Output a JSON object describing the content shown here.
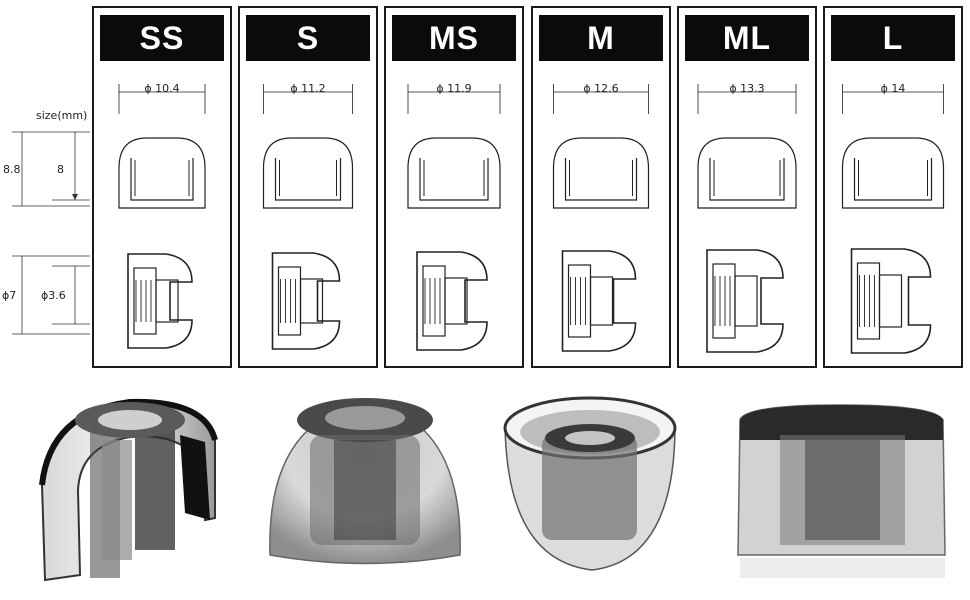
{
  "legend": {
    "unit_label": "size(mm)",
    "outer_height": "8.8",
    "inner_height": "8",
    "outer_diameter": "ϕ7",
    "bore_diameter": "ϕ3.6"
  },
  "sizes": [
    {
      "name": "SS",
      "diameter": "ϕ 10.4"
    },
    {
      "name": "S",
      "diameter": "ϕ 11.2"
    },
    {
      "name": "MS",
      "diameter": "ϕ 11.9"
    },
    {
      "name": "M",
      "diameter": "ϕ 12.6"
    },
    {
      "name": "ML",
      "diameter": "ϕ 13.3"
    },
    {
      "name": "L",
      "diameter": "ϕ 14"
    }
  ],
  "colors": {
    "border": "#1a1a1a",
    "header_bg": "#0b0b0b",
    "header_text": "#ffffff"
  },
  "photos": [
    {
      "name": "eartip-photo-cutaway"
    },
    {
      "name": "eartip-photo-dome"
    },
    {
      "name": "eartip-photo-wide-bowl"
    },
    {
      "name": "eartip-photo-dark-top"
    }
  ]
}
